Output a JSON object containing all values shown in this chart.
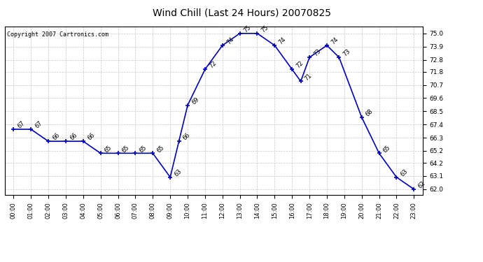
{
  "title": "Wind Chill (Last 24 Hours) 20070825",
  "copyright_text": "Copyright 2007 Cartronics.com",
  "x_pts": [
    0,
    1,
    2,
    3,
    4,
    5,
    6,
    7,
    8,
    9,
    9.5,
    10,
    11,
    12,
    13,
    14,
    15,
    16,
    16.5,
    17,
    18,
    18.7,
    20,
    21,
    22,
    23
  ],
  "y_pts": [
    67,
    67,
    66,
    66,
    66,
    65,
    65,
    65,
    65,
    63,
    66,
    69,
    72,
    74,
    75,
    75,
    74,
    72,
    71,
    73,
    74,
    73,
    68,
    65,
    63,
    62
  ],
  "labels": [
    "67",
    "67",
    "66",
    "66",
    "66",
    "65",
    "65",
    "65",
    "65",
    "63",
    "66",
    "69",
    "72",
    "74",
    "75",
    "75",
    "74",
    "72",
    "71",
    "73",
    "74",
    "73",
    "68",
    "65",
    "63",
    "62"
  ],
  "show_label": [
    true,
    true,
    true,
    true,
    true,
    true,
    true,
    true,
    true,
    true,
    true,
    true,
    true,
    true,
    true,
    true,
    true,
    true,
    true,
    true,
    true,
    true,
    true,
    true,
    true,
    true
  ],
  "time_labels": [
    "00:00",
    "01:00",
    "02:00",
    "03:00",
    "04:00",
    "05:00",
    "06:00",
    "07:00",
    "08:00",
    "09:00",
    "10:00",
    "11:00",
    "12:00",
    "13:00",
    "14:00",
    "15:00",
    "16:00",
    "17:00",
    "18:00",
    "19:00",
    "20:00",
    "21:00",
    "22:00",
    "23:00"
  ],
  "ytick_values": [
    62.0,
    63.1,
    64.2,
    65.2,
    66.3,
    67.4,
    68.5,
    69.6,
    70.7,
    71.8,
    72.8,
    73.9,
    75.0
  ],
  "ymin": 61.5,
  "ymax": 75.6,
  "line_color": "#0000bb",
  "bg_color": "#ffffff",
  "grid_color": "#c8c8c8",
  "title_fontsize": 10,
  "annot_fontsize": 6,
  "copy_fontsize": 6,
  "tick_fontsize": 6,
  "ytick_fontsize": 6.5
}
